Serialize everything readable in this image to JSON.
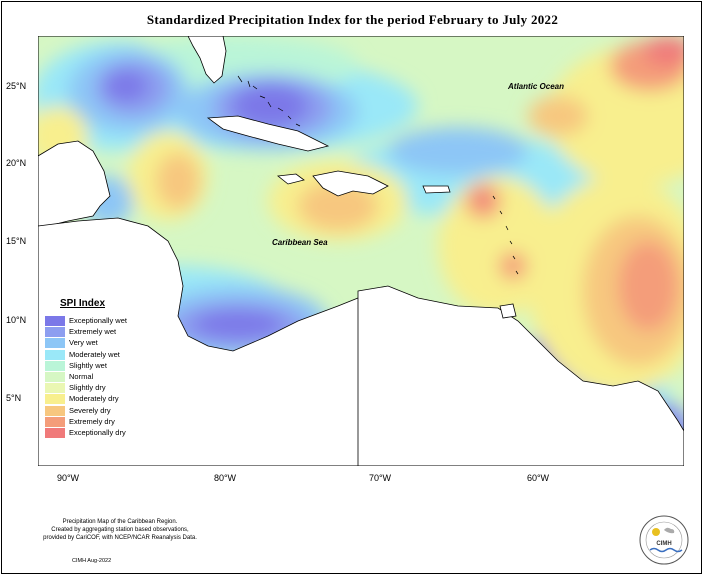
{
  "title": "Standardized Precipitation Index for the period February to July 2022",
  "labels": {
    "atlantic": "Atlantic Ocean",
    "caribbean": "Caribbean Sea"
  },
  "lat_ticks": [
    "25°N",
    "20°N",
    "15°N",
    "10°N",
    "5°N"
  ],
  "lon_ticks": [
    "90°W",
    "80°W",
    "70°W",
    "60°W"
  ],
  "legend": {
    "title": "SPI Index",
    "items": [
      {
        "label": "Exceptionally wet",
        "color": "#7b78e8"
      },
      {
        "label": "Extremely wet",
        "color": "#8d9ef0"
      },
      {
        "label": "Very wet",
        "color": "#8dc6f6"
      },
      {
        "label": "Moderately wet",
        "color": "#9ae8f8"
      },
      {
        "label": "Slightly wet",
        "color": "#baf5d8"
      },
      {
        "label": "Normal",
        "color": "#d6f7c4"
      },
      {
        "label": "Slightly dry",
        "color": "#eaf7b3"
      },
      {
        "label": "Moderately dry",
        "color": "#f8ef8e"
      },
      {
        "label": "Severely dry",
        "color": "#f7c77f"
      },
      {
        "label": "Extremely dry",
        "color": "#f49d7a"
      },
      {
        "label": "Exceptionally dry",
        "color": "#f07a7a"
      }
    ]
  },
  "footnote": [
    "Precipitation Map of the Caribbean Region.",
    "Created by aggregating station based observations,",
    "provided by CariCOF, with NCEP/NCAR Reanalysis Data."
  ],
  "credit": "CIMH Aug-2022",
  "logo_text": "CIMH"
}
